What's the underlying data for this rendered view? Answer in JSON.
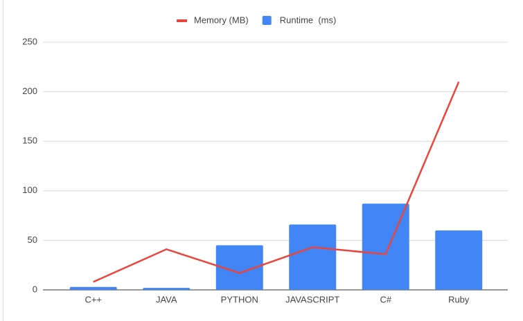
{
  "chart_data": {
    "type": "combo",
    "categories": [
      "C++",
      "JAVA",
      "PYTHON",
      "JAVASCRIPT",
      "C#",
      "Ruby"
    ],
    "series": [
      {
        "name": "Memory (MB)",
        "type": "line",
        "color": "#e8453c",
        "values": [
          8,
          41,
          17,
          43,
          36,
          210
        ]
      },
      {
        "name": "Runtime  (ms)",
        "type": "bar",
        "color": "#4285f4",
        "values": [
          3,
          2,
          45,
          66,
          87,
          60
        ]
      }
    ],
    "ylim": [
      0,
      250
    ],
    "yticks": [
      0,
      50,
      100,
      150,
      200,
      250
    ],
    "grid": true,
    "legend": "top"
  }
}
